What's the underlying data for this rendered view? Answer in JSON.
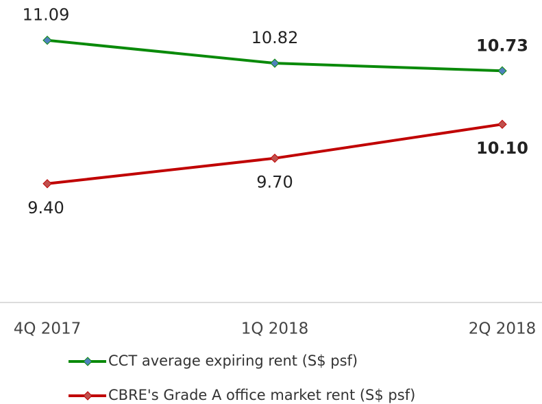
{
  "chart_data": {
    "type": "line",
    "categories": [
      "4Q 2017",
      "1Q 2018",
      "2Q 2018"
    ],
    "series": [
      {
        "name": "CCT average expiring rent (S$ psf)",
        "color": "#0a8a0a",
        "marker_color": "#4f81bd",
        "values": [
          11.09,
          10.82,
          10.73
        ],
        "value_labels": [
          "11.09",
          "10.82",
          "10.73"
        ]
      },
      {
        "name": "CBRE's Grade A office market rent (S$ psf)",
        "color": "#c00000",
        "marker_color": "#c0504d",
        "values": [
          9.4,
          9.7,
          10.1
        ],
        "value_labels": [
          "9.40",
          "9.70",
          "10.10"
        ]
      }
    ],
    "ylim": [
      8,
      11.5
    ],
    "legend": "bottom"
  }
}
